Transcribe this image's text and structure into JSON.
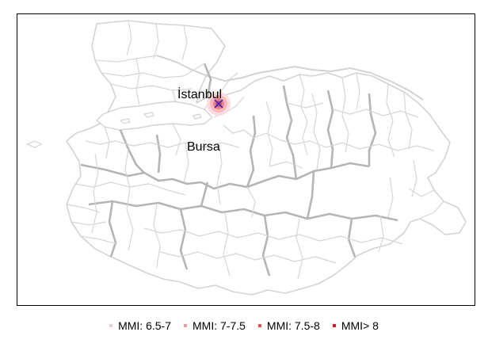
{
  "map": {
    "cities": [
      {
        "id": "istanbul",
        "name": "İstanbul"
      },
      {
        "id": "bursa",
        "name": "Bursa"
      }
    ],
    "epicenter_marker": "x-mark",
    "intensity_zone_colors": [
      "#fbd4d6",
      "#f5a3a8",
      "#f0757c"
    ],
    "marker_color": "#2b2bd6"
  },
  "legend": {
    "items": [
      {
        "label": "MMI: 6.5-7",
        "color": "#f9c6c9"
      },
      {
        "label": "MMI: 7-7.5",
        "color": "#f29a9f"
      },
      {
        "label": "MMI: 7.5-8",
        "color": "#ee4b55"
      },
      {
        "label": "MMI> 8",
        "color": "#e0121e"
      }
    ]
  }
}
